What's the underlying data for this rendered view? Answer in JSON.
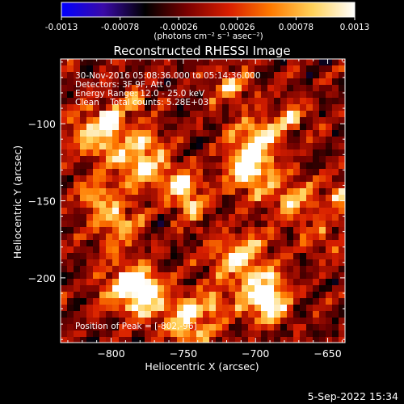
{
  "colorbar": {
    "ticks": [
      "-0.0013",
      "-0.00078",
      "-0.00026",
      "0.00026",
      "0.00078",
      "0.0013"
    ],
    "tick_values": [
      -0.0013,
      -0.00078,
      -0.00026,
      0.00026,
      0.00078,
      0.0013
    ],
    "range": [
      -0.0013,
      0.0013
    ],
    "units_text": "(photons cm⁻² s⁻¹ asec⁻²)",
    "colors": [
      "#0000ff",
      "#3a0aa8",
      "#000000",
      "#7a0000",
      "#d81e00",
      "#ff7a00",
      "#ffd25a",
      "#ffffff"
    ]
  },
  "chart_data": {
    "type": "heatmap",
    "title": "Reconstructed RHESSI Image",
    "xlabel": "Heliocentric X (arcsec)",
    "ylabel": "Heliocentric Y (arcsec)",
    "xlim": [
      -835,
      -638
    ],
    "ylim": [
      -242,
      -58
    ],
    "x_ticks": [
      -800,
      -750,
      -700,
      -650
    ],
    "x_tick_labels": [
      "−800",
      "−750",
      "−700",
      "−650"
    ],
    "y_ticks": [
      -100,
      -150,
      -200
    ],
    "y_tick_labels": [
      "−100",
      "−150",
      "−200"
    ],
    "annotations": [
      "30-Nov-2016 05:08:36.000 to 05:14:36.000",
      "Detectors: 3F 9F, Att 0",
      "Energy Range: 12.0 - 25.0 keV",
      "Clean    Total counts: 5.28E+03"
    ],
    "peak_label": "Position of Peak = [-802,-96]",
    "peak_position": [
      -802,
      -96
    ],
    "grid": false
  },
  "footer": {
    "timestamp": "5-Sep-2022 15:34"
  }
}
